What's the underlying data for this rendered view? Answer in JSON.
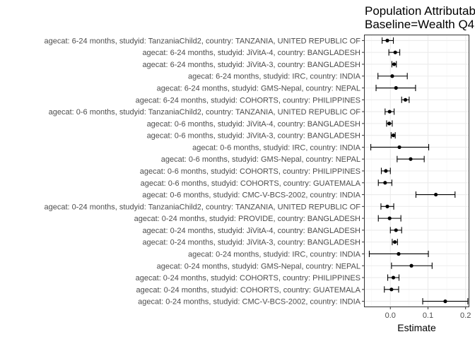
{
  "chart_data": {
    "type": "forest",
    "title_lines": [
      "Population Attributable Difference",
      "Baseline=Wealth Q4"
    ],
    "xlabel": "Estimate",
    "ylabel": "",
    "xlim": [
      -0.07,
      0.21
    ],
    "xticks": [
      0.0,
      0.1,
      0.2
    ],
    "xtick_labels": [
      "0.0",
      "0.1",
      "0.2"
    ],
    "grid": true,
    "legend": "none",
    "colors": {
      "point": "#000000",
      "grid_major": "#ebebeb",
      "grid_minor": "#f5f5f5",
      "panel_border": "#333333"
    },
    "rows": [
      {
        "label": "agecat: 6-24 months, studyid: TanzaniaChild2, country: TANZANIA, UNITED REPUBLIC OF",
        "est": -0.008,
        "lo": -0.022,
        "hi": 0.008
      },
      {
        "label": "agecat: 6-24 months, studyid: JiVitA-4, country: BANGLADESH",
        "est": 0.013,
        "lo": -0.004,
        "hi": 0.025
      },
      {
        "label": "agecat: 6-24 months, studyid: JiVitA-3, country: BANGLADESH",
        "est": 0.01,
        "lo": 0.004,
        "hi": 0.016
      },
      {
        "label": "agecat: 6-24 months, studyid: IRC, country: INDIA",
        "est": 0.005,
        "lo": -0.033,
        "hi": 0.045
      },
      {
        "label": "agecat: 6-24 months, studyid: GMS-Nepal, country: NEPAL",
        "est": 0.015,
        "lo": -0.038,
        "hi": 0.067
      },
      {
        "label": "agecat: 6-24 months, studyid: COHORTS, country: PHILIPPINES",
        "est": 0.04,
        "lo": 0.03,
        "hi": 0.05
      },
      {
        "label": "agecat: 0-6 months, studyid: TanzaniaChild2, country: TANZANIA, UNITED REPUBLIC OF",
        "est": -0.002,
        "lo": -0.014,
        "hi": 0.01
      },
      {
        "label": "agecat: 0-6 months, studyid: JiVitA-4, country: BANGLADESH",
        "est": -0.003,
        "lo": -0.01,
        "hi": 0.005
      },
      {
        "label": "agecat: 0-6 months, studyid: JiVitA-3, country: BANGLADESH",
        "est": 0.008,
        "lo": 0.002,
        "hi": 0.013
      },
      {
        "label": "agecat: 0-6 months, studyid: IRC, country: INDIA",
        "est": 0.024,
        "lo": -0.052,
        "hi": 0.102
      },
      {
        "label": "agecat: 0-6 months, studyid: GMS-Nepal, country: NEPAL",
        "est": 0.054,
        "lo": 0.018,
        "hi": 0.09
      },
      {
        "label": "agecat: 0-6 months, studyid: COHORTS, country: PHILIPPINES",
        "est": -0.012,
        "lo": -0.024,
        "hi": 0.0
      },
      {
        "label": "agecat: 0-6 months, studyid: COHORTS, country: GUATEMALA",
        "est": -0.014,
        "lo": -0.032,
        "hi": 0.004
      },
      {
        "label": "agecat: 0-6 months, studyid: CMC-V-BCS-2002, country: INDIA",
        "est": 0.121,
        "lo": 0.068,
        "hi": 0.172
      },
      {
        "label": "agecat: 0-24 months, studyid: TanzaniaChild2, country: TANZANIA, UNITED REPUBLIC OF",
        "est": -0.008,
        "lo": -0.025,
        "hi": 0.009
      },
      {
        "label": "agecat: 0-24 months, studyid: PROVIDE, country: BANGLADESH",
        "est": -0.002,
        "lo": -0.032,
        "hi": 0.028
      },
      {
        "label": "agecat: 0-24 months, studyid: JiVitA-4, country: BANGLADESH",
        "est": 0.015,
        "lo": 0.0,
        "hi": 0.03
      },
      {
        "label": "agecat: 0-24 months, studyid: JiVitA-3, country: BANGLADESH",
        "est": 0.012,
        "lo": 0.005,
        "hi": 0.019
      },
      {
        "label": "agecat: 0-24 months, studyid: IRC, country: INDIA",
        "est": 0.022,
        "lo": -0.056,
        "hi": 0.101
      },
      {
        "label": "agecat: 0-24 months, studyid: GMS-Nepal, country: NEPAL",
        "est": 0.056,
        "lo": 0.003,
        "hi": 0.111
      },
      {
        "label": "agecat: 0-24 months, studyid: COHORTS, country: PHILIPPINES",
        "est": 0.008,
        "lo": -0.007,
        "hi": 0.023
      },
      {
        "label": "agecat: 0-24 months, studyid: COHORTS, country: GUATEMALA",
        "est": 0.003,
        "lo": -0.016,
        "hi": 0.022
      },
      {
        "label": "agecat: 0-24 months, studyid: CMC-V-BCS-2002, country: INDIA",
        "est": 0.146,
        "lo": 0.086,
        "hi": 0.206
      }
    ]
  }
}
